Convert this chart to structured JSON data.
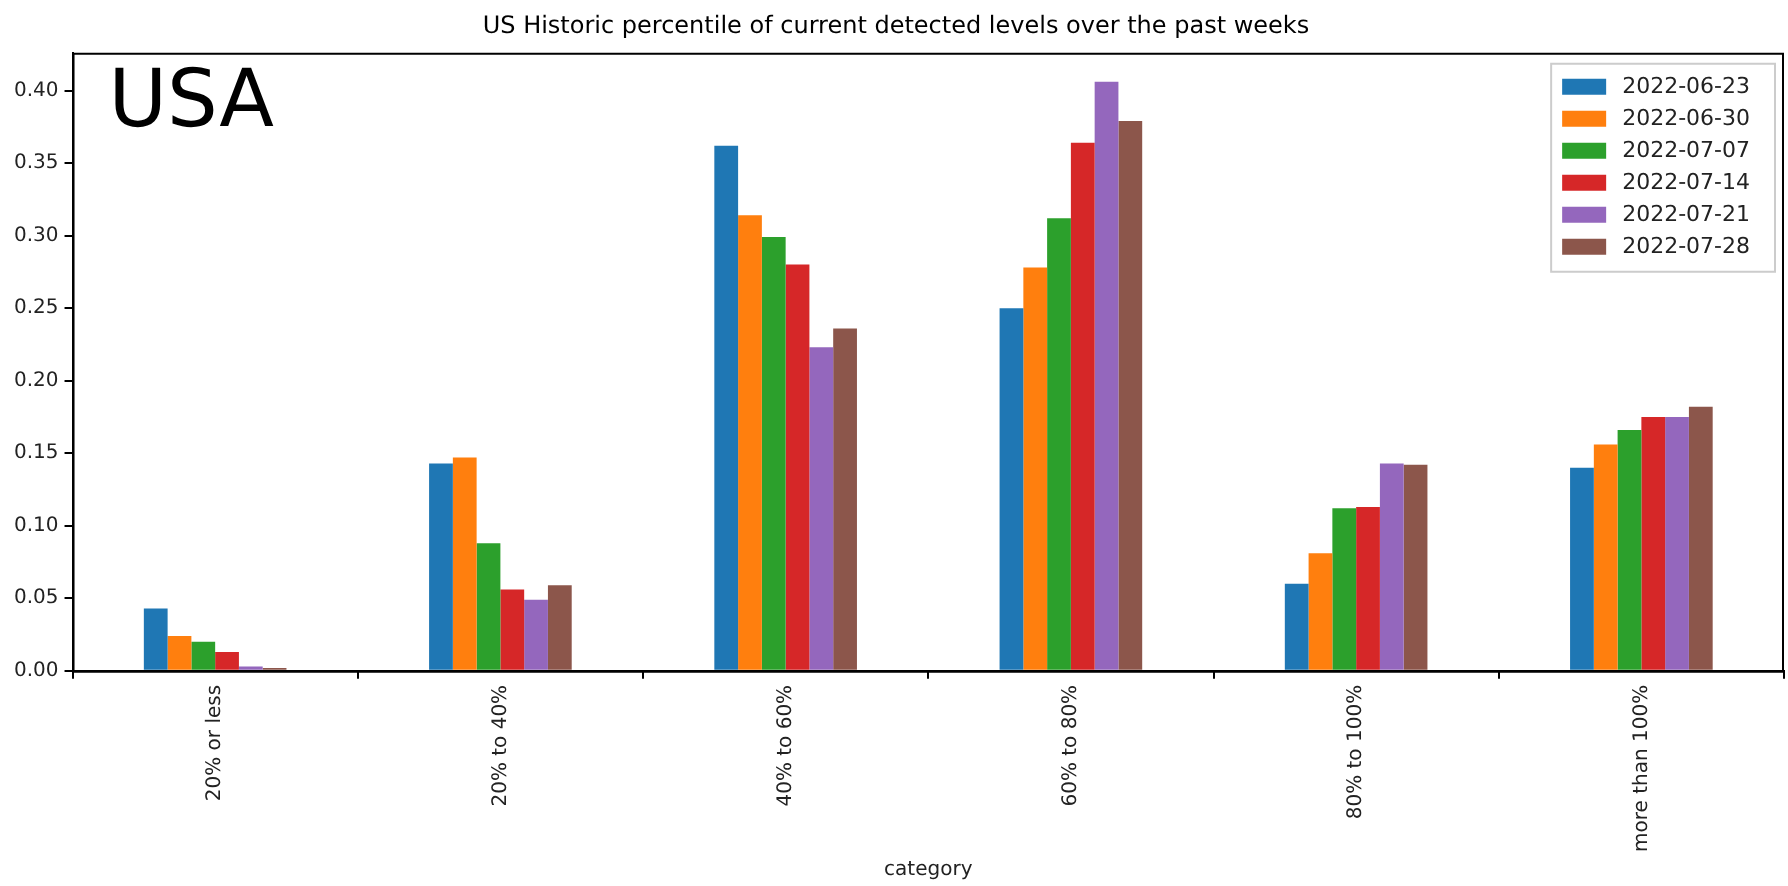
{
  "chart_data": {
    "type": "bar",
    "title": "US Historic percentile of current detected levels over the past weeks",
    "xlabel": "category",
    "annotations": [
      "USA"
    ],
    "categories": [
      "20% or less",
      "20% to 40%",
      "40% to 60%",
      "60% to 80%",
      "80% to 100%",
      "more than 100%"
    ],
    "series": [
      {
        "name": "2022-06-23",
        "color": "#1f77b4",
        "values": [
          0.043,
          0.143,
          0.362,
          0.25,
          0.06,
          0.14
        ]
      },
      {
        "name": "2022-06-30",
        "color": "#ff7f0e",
        "values": [
          0.024,
          0.147,
          0.314,
          0.278,
          0.081,
          0.156
        ]
      },
      {
        "name": "2022-07-07",
        "color": "#2ca02c",
        "values": [
          0.02,
          0.088,
          0.299,
          0.312,
          0.112,
          0.166
        ]
      },
      {
        "name": "2022-07-14",
        "color": "#d62728",
        "values": [
          0.013,
          0.056,
          0.28,
          0.364,
          0.113,
          0.175
        ]
      },
      {
        "name": "2022-07-21",
        "color": "#9467bd",
        "values": [
          0.003,
          0.049,
          0.223,
          0.406,
          0.143,
          0.175
        ]
      },
      {
        "name": "2022-07-28",
        "color": "#8c564b",
        "values": [
          0.002,
          0.059,
          0.236,
          0.379,
          0.142,
          0.182
        ]
      }
    ],
    "ylim": [
      0,
      0.426
    ],
    "yticks": [
      {
        "value": 0,
        "label": "0.00"
      },
      {
        "value": 0.05,
        "label": "0.05"
      },
      {
        "value": 0.1,
        "label": "0.10"
      },
      {
        "value": 0.15,
        "label": "0.15"
      },
      {
        "value": 0.2,
        "label": "0.20"
      },
      {
        "value": 0.25,
        "label": "0.25"
      },
      {
        "value": 0.3,
        "label": "0.30"
      },
      {
        "value": 0.35,
        "label": "0.35"
      },
      {
        "value": 0.4,
        "label": "0.40"
      }
    ],
    "grid": false,
    "legend": "top right"
  }
}
